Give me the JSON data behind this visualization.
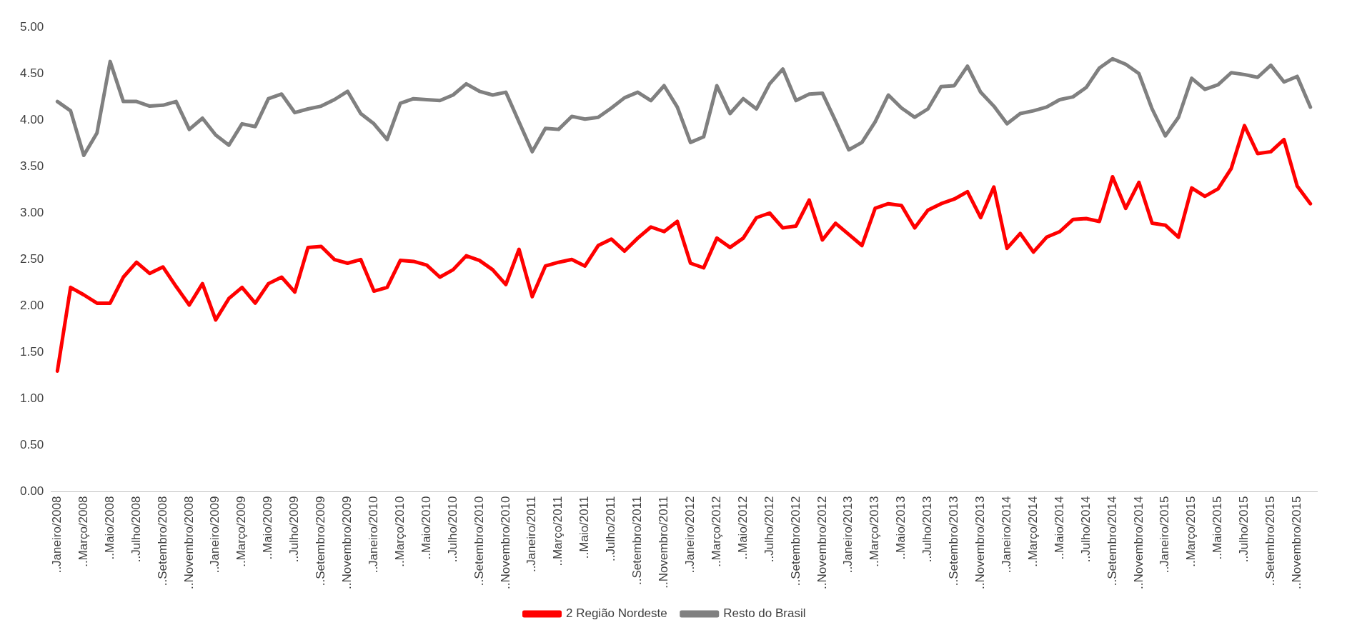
{
  "chart_data": {
    "type": "line",
    "categories": [
      "..Janeiro/2008",
      null,
      "..Março/2008",
      null,
      "..Maio/2008",
      null,
      "..Julho/2008",
      null,
      "..Setembro/2008",
      null,
      "..Novembro/2008",
      null,
      "..Janeiro/2009",
      null,
      "..Março/2009",
      null,
      "..Maio/2009",
      null,
      "..Julho/2009",
      null,
      "..Setembro/2009",
      null,
      "..Novembro/2009",
      null,
      "..Janeiro/2010",
      null,
      "..Março/2010",
      null,
      "..Maio/2010",
      null,
      "..Julho/2010",
      null,
      "..Setembro/2010",
      null,
      "..Novembro/2010",
      null,
      "..Janeiro/2011",
      null,
      "..Março/2011",
      null,
      "..Maio/2011",
      null,
      "..Julho/2011",
      null,
      "..Setembro/2011",
      null,
      "..Novembro/2011",
      null,
      "..Janeiro/2012",
      null,
      "..Março/2012",
      null,
      "..Maio/2012",
      null,
      "..Julho/2012",
      null,
      "..Setembro/2012",
      null,
      "..Novembro/2012",
      null,
      "..Janeiro/2013",
      null,
      "..Março/2013",
      null,
      "..Maio/2013",
      null,
      "..Julho/2013",
      null,
      "..Setembro/2013",
      null,
      "..Novembro/2013",
      null,
      "..Janeiro/2014",
      null,
      "..Março/2014",
      null,
      "..Maio/2014",
      null,
      "..Julho/2014",
      null,
      "..Setembro/2014",
      null,
      "..Novembro/2014",
      null,
      "..Janeiro/2015",
      null,
      "..Março/2015",
      null,
      "..Maio/2015",
      null,
      "..Julho/2015",
      null,
      "..Setembro/2015",
      null,
      "..Novembro/2015",
      null
    ],
    "series": [
      {
        "name": "2 Região Nordeste",
        "color": "#ff0000",
        "values": [
          1.3,
          2.2,
          2.12,
          2.03,
          2.03,
          2.31,
          2.47,
          2.35,
          2.42,
          2.21,
          2.01,
          2.24,
          1.85,
          2.08,
          2.2,
          2.03,
          2.24,
          2.31,
          2.15,
          2.63,
          2.64,
          2.5,
          2.46,
          2.5,
          2.16,
          2.2,
          2.49,
          2.48,
          2.44,
          2.31,
          2.39,
          2.54,
          2.49,
          2.39,
          2.23,
          2.61,
          2.1,
          2.43,
          2.47,
          2.5,
          2.43,
          2.65,
          2.72,
          2.59,
          2.73,
          2.85,
          2.8,
          2.91,
          2.46,
          2.41,
          2.73,
          2.63,
          2.73,
          2.95,
          3.0,
          2.84,
          2.86,
          3.14,
          2.71,
          2.89,
          2.77,
          2.65,
          3.05,
          3.1,
          3.08,
          2.84,
          3.03,
          3.1,
          3.15,
          3.23,
          2.95,
          3.28,
          2.62,
          2.78,
          2.58,
          2.74,
          2.8,
          2.93,
          2.94,
          2.91,
          3.39,
          3.05,
          3.33,
          2.89,
          2.87,
          2.74,
          3.27,
          3.18,
          3.26,
          3.48,
          3.94,
          3.64,
          3.66,
          3.79,
          3.29,
          3.1
        ]
      },
      {
        "name": "Resto do Brasil",
        "color": "#808080",
        "values": [
          4.2,
          4.1,
          3.62,
          3.86,
          4.63,
          4.2,
          4.2,
          4.15,
          4.16,
          4.2,
          3.9,
          4.02,
          3.84,
          3.73,
          3.96,
          3.93,
          4.23,
          4.28,
          4.08,
          4.12,
          4.15,
          4.22,
          4.31,
          4.07,
          3.96,
          3.79,
          4.18,
          4.23,
          4.22,
          4.21,
          4.27,
          4.39,
          4.31,
          4.27,
          4.3,
          3.98,
          3.66,
          3.91,
          3.9,
          4.04,
          4.01,
          4.03,
          4.13,
          4.24,
          4.3,
          4.21,
          4.37,
          4.14,
          3.76,
          3.82,
          4.37,
          4.07,
          4.23,
          4.12,
          4.39,
          4.55,
          4.21,
          4.28,
          4.29,
          3.99,
          3.68,
          3.76,
          3.98,
          4.27,
          4.13,
          4.03,
          4.12,
          4.36,
          4.37,
          4.58,
          4.3,
          4.15,
          3.96,
          4.07,
          4.1,
          4.14,
          4.22,
          4.25,
          4.35,
          4.56,
          4.66,
          4.6,
          4.5,
          4.12,
          3.83,
          4.03,
          4.45,
          4.33,
          4.38,
          4.51,
          4.49,
          4.46,
          4.59,
          4.41,
          4.47,
          4.14
        ]
      }
    ],
    "ylim": [
      0,
      5
    ],
    "yticks": [
      {
        "value": 0,
        "label": "0.00"
      },
      {
        "value": 0.5,
        "label": "0.50"
      },
      {
        "value": 1,
        "label": "1.00"
      },
      {
        "value": 1.5,
        "label": "1.50"
      },
      {
        "value": 2,
        "label": "2.00"
      },
      {
        "value": 2.5,
        "label": "2.50"
      },
      {
        "value": 3,
        "label": "3.00"
      },
      {
        "value": 3.5,
        "label": "3.50"
      },
      {
        "value": 4,
        "label": "4.00"
      },
      {
        "value": 4.5,
        "label": "4.50"
      },
      {
        "value": 5,
        "label": "5.00"
      }
    ],
    "grid": false,
    "legend": "bottom",
    "marker": "none",
    "line_style": "solid"
  }
}
